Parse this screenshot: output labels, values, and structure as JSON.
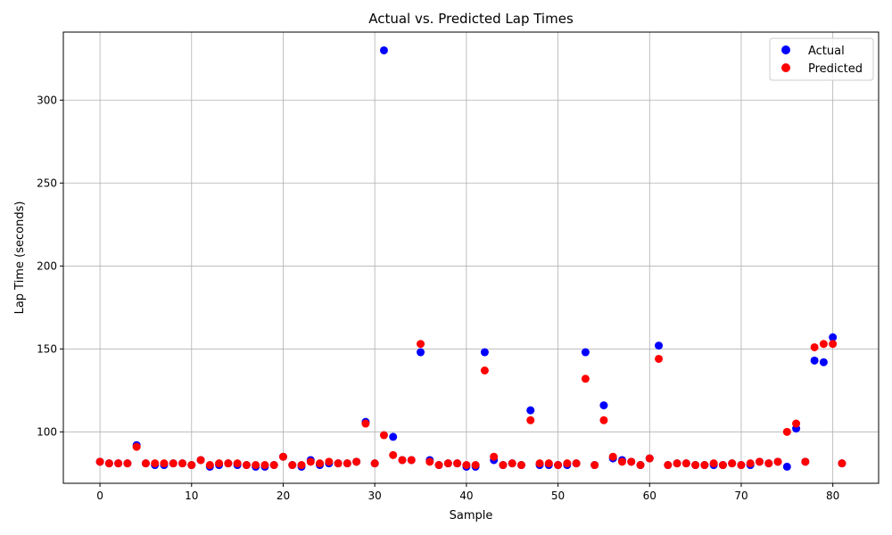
{
  "chart_data": {
    "type": "scatter",
    "title": "Actual vs. Predicted Lap Times",
    "xlabel": "Sample",
    "ylabel": "Lap Time (seconds)",
    "xlim": [
      -4,
      85
    ],
    "ylim": [
      69,
      341
    ],
    "xticks": [
      0,
      10,
      20,
      30,
      40,
      50,
      60,
      70,
      80
    ],
    "yticks": [
      100,
      150,
      200,
      250,
      300
    ],
    "grid": true,
    "legend_position": "top-right",
    "series": [
      {
        "name": "Actual",
        "color": "#0000ff",
        "x": [
          0,
          1,
          2,
          3,
          4,
          5,
          6,
          7,
          8,
          9,
          10,
          11,
          12,
          13,
          14,
          15,
          16,
          17,
          18,
          19,
          20,
          21,
          22,
          23,
          24,
          25,
          26,
          27,
          28,
          29,
          30,
          31,
          32,
          33,
          34,
          35,
          36,
          37,
          38,
          39,
          40,
          41,
          42,
          43,
          44,
          45,
          46,
          47,
          48,
          49,
          50,
          51,
          52,
          53,
          54,
          55,
          56,
          57,
          58,
          59,
          60,
          61,
          62,
          63,
          64,
          65,
          66,
          67,
          68,
          69,
          70,
          71,
          72,
          73,
          74,
          75,
          76,
          77,
          78,
          79,
          80,
          81
        ],
        "y": [
          82,
          81,
          81,
          81,
          92,
          81,
          80,
          80,
          81,
          81,
          80,
          83,
          79,
          80,
          81,
          80,
          80,
          79,
          79,
          80,
          85,
          80,
          79,
          83,
          80,
          81,
          81,
          81,
          82,
          106,
          81,
          330,
          97,
          83,
          83,
          148,
          83,
          80,
          81,
          81,
          79,
          79,
          148,
          83,
          80,
          81,
          80,
          113,
          80,
          80,
          80,
          80,
          81,
          148,
          80,
          116,
          84,
          83,
          82,
          80,
          84,
          152,
          80,
          81,
          81,
          80,
          80,
          80,
          80,
          81,
          80,
          80,
          82,
          81,
          82,
          79,
          102,
          82,
          143,
          142,
          157,
          81
        ]
      },
      {
        "name": "Predicted",
        "color": "#ff0000",
        "x": [
          0,
          1,
          2,
          3,
          4,
          5,
          6,
          7,
          8,
          9,
          10,
          11,
          12,
          13,
          14,
          15,
          16,
          17,
          18,
          19,
          20,
          21,
          22,
          23,
          24,
          25,
          26,
          27,
          28,
          29,
          30,
          31,
          32,
          33,
          34,
          35,
          36,
          37,
          38,
          39,
          40,
          41,
          42,
          43,
          44,
          45,
          46,
          47,
          48,
          49,
          50,
          51,
          52,
          53,
          54,
          55,
          56,
          57,
          58,
          59,
          60,
          61,
          62,
          63,
          64,
          65,
          66,
          67,
          68,
          69,
          70,
          71,
          72,
          73,
          74,
          75,
          76,
          77,
          78,
          79,
          80,
          81
        ],
        "y": [
          82,
          81,
          81,
          81,
          91,
          81,
          81,
          81,
          81,
          81,
          80,
          83,
          80,
          81,
          81,
          81,
          80,
          80,
          80,
          80,
          85,
          80,
          80,
          82,
          81,
          82,
          81,
          81,
          82,
          105,
          81,
          98,
          86,
          83,
          83,
          153,
          82,
          80,
          81,
          81,
          80,
          80,
          137,
          85,
          80,
          81,
          80,
          107,
          81,
          81,
          80,
          81,
          81,
          132,
          80,
          107,
          85,
          82,
          82,
          80,
          84,
          144,
          80,
          81,
          81,
          80,
          80,
          81,
          80,
          81,
          80,
          81,
          82,
          81,
          82,
          100,
          105,
          82,
          151,
          153,
          153,
          81
        ]
      }
    ]
  }
}
